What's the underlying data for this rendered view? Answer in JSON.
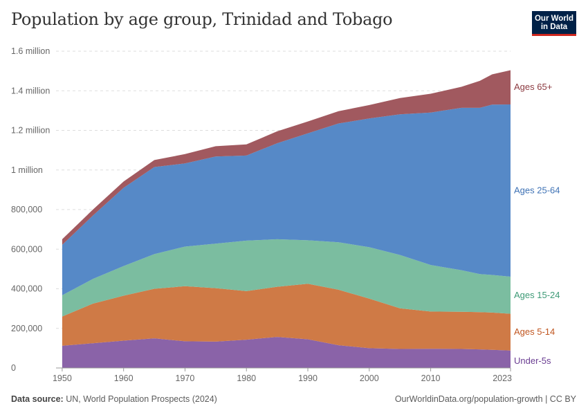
{
  "title": "Population by age group, Trinidad and Tobago",
  "logo": {
    "line1": "Our World",
    "line2": "in Data"
  },
  "footer": {
    "source_label": "Data source:",
    "source_text": "UN, World Population Prospects (2024)",
    "url_text": "OurWorldinData.org/population-growth | CC BY"
  },
  "chart_data": {
    "type": "area",
    "stacked": true,
    "title": "Population by age group, Trinidad and Tobago",
    "x": [
      1950,
      1955,
      1960,
      1965,
      1970,
      1975,
      1980,
      1985,
      1990,
      1995,
      2000,
      2005,
      2010,
      2015,
      2018,
      2020,
      2023
    ],
    "x_ticks": [
      1950,
      1960,
      1970,
      1980,
      1990,
      2000,
      2010,
      2023
    ],
    "xlim": [
      1949,
      2023
    ],
    "ylim": [
      0,
      1600000
    ],
    "y_ticks": [
      0,
      200000,
      400000,
      600000,
      800000,
      1000000,
      1200000,
      1400000,
      1600000
    ],
    "y_tick_labels": [
      "0",
      "200,000",
      "400,000",
      "600,000",
      "800,000",
      "1 million",
      "1.2 million",
      "1.4 million",
      "1.6 million"
    ],
    "grid": true,
    "legend": "right (inline labels)",
    "series": [
      {
        "name": "Under-5s",
        "color": "#8a63a8",
        "values": [
          112000,
          125000,
          138000,
          150000,
          135000,
          133000,
          143000,
          157000,
          145000,
          115000,
          100000,
          96000,
          97000,
          96000,
          94000,
          92000,
          88000
        ]
      },
      {
        "name": "Ages 5-14",
        "color": "#cf7a46",
        "values": [
          148000,
          200000,
          227000,
          250000,
          278000,
          270000,
          245000,
          253000,
          280000,
          280000,
          250000,
          205000,
          188000,
          188000,
          188000,
          188000,
          186000
        ]
      },
      {
        "name": "Ages 15-24",
        "color": "#7bbda0",
        "values": [
          107000,
          125000,
          150000,
          175000,
          200000,
          225000,
          255000,
          240000,
          220000,
          240000,
          260000,
          270000,
          235000,
          210000,
          192000,
          190000,
          187000
        ]
      },
      {
        "name": "Ages 25-64",
        "color": "#5689c7",
        "values": [
          255000,
          320000,
          395000,
          440000,
          420000,
          440000,
          430000,
          485000,
          540000,
          600000,
          650000,
          710000,
          770000,
          820000,
          840000,
          860000,
          870000
        ]
      },
      {
        "name": "Ages 65+",
        "color": "#a1595f",
        "values": [
          28000,
          30000,
          32000,
          35000,
          47000,
          52000,
          56000,
          60000,
          60000,
          62000,
          68000,
          82000,
          95000,
          106000,
          136000,
          153000,
          173000
        ]
      }
    ]
  }
}
